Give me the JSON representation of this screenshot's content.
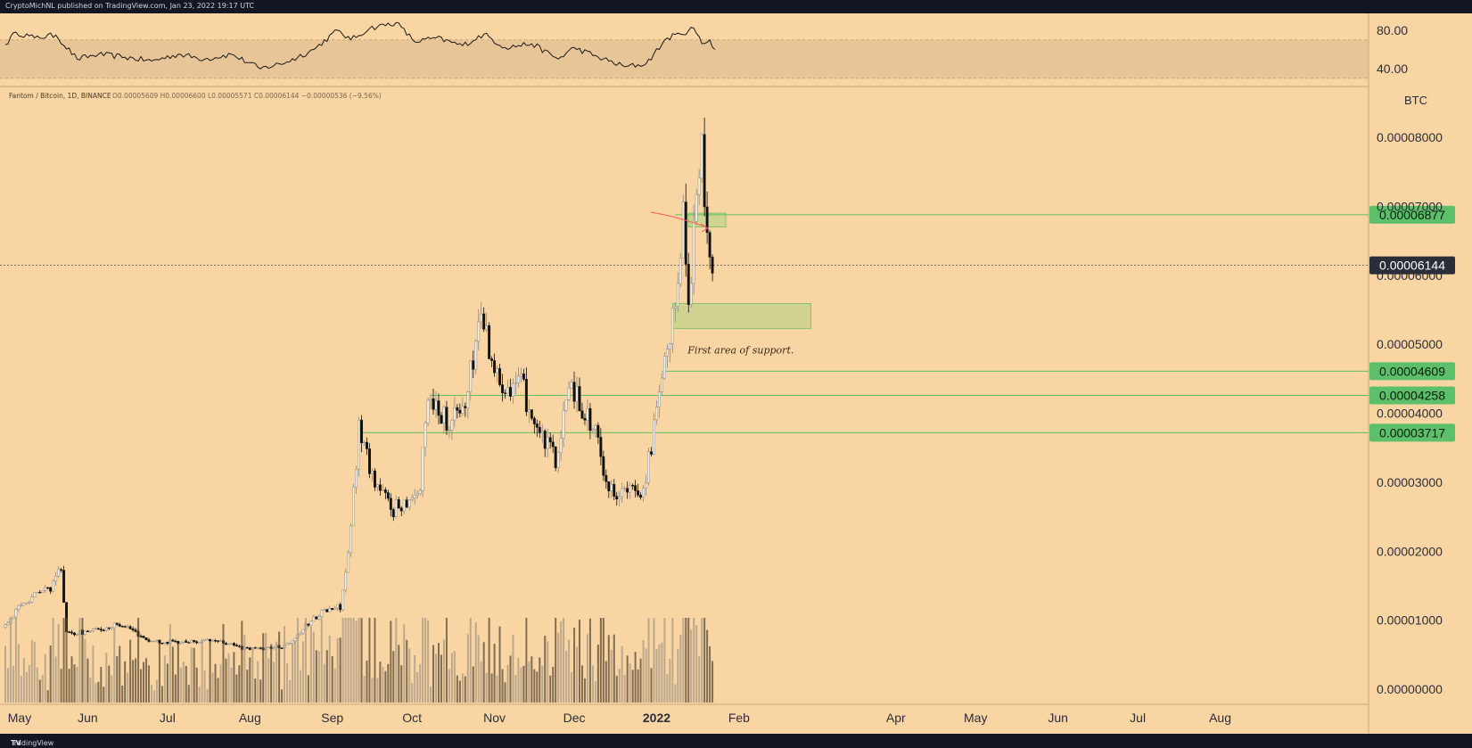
{
  "header": {
    "published_text": "CryptoMichNL published on TradingView.com, Jan 23, 2022 19:17 UTC"
  },
  "footer": {
    "brand": "TradingView",
    "logo_icon": "tradingview-logo-icon"
  },
  "colors": {
    "background": "#f8d5a3",
    "candle": "#111111",
    "level_line": "#5cc05c",
    "level_label_bg": "#5cbf6a",
    "current_label_bg": "#2a2e39",
    "rsi_band": "#e8c596",
    "annotation_arrow": "#ff5a5a"
  },
  "legend": {
    "symbol": "Fantom / Bitcoin, 1D, BINANCE",
    "ohlc": "O0.00005609 H0.00006600 L0.00005571 C0.00006144 −0.00000536 (−9.56%)"
  },
  "price_axis": {
    "unit": "BTC",
    "ticks": [
      "0.00000000",
      "0.00001000",
      "0.00002000",
      "0.00003000",
      "0.00004000",
      "0.00005000",
      "0.00006000",
      "0.00007000",
      "0.00008000"
    ]
  },
  "rsi_axis": {
    "ticks": [
      "80.00",
      "40.00"
    ]
  },
  "time_axis": {
    "labels": [
      {
        "label": "May"
      },
      {
        "label": "Jun"
      },
      {
        "label": "Jul"
      },
      {
        "label": "Aug"
      },
      {
        "label": "Sep"
      },
      {
        "label": "Oct"
      },
      {
        "label": "Nov"
      },
      {
        "label": "Dec"
      },
      {
        "label": "2022",
        "bold": true
      },
      {
        "label": "Feb"
      },
      {
        "label": "Apr"
      },
      {
        "label": "May"
      },
      {
        "label": "Jun"
      },
      {
        "label": "Jul"
      },
      {
        "label": "Aug"
      }
    ]
  },
  "chart_data": {
    "type": "candlestick",
    "title": "Fantom / Bitcoin, 1D, BINANCE",
    "ylabel": "BTC",
    "ylim": [
      0,
      8.5e-05
    ],
    "x_range": [
      "2021-05-01",
      "2022-08-31"
    ],
    "series": [
      {
        "date": "2021-05-01",
        "close": 9e-06
      },
      {
        "date": "2021-05-10",
        "close": 1.3e-05
      },
      {
        "date": "2021-05-20",
        "close": 1.5e-05
      },
      {
        "date": "2021-05-23",
        "close": 1.8e-05
      },
      {
        "date": "2021-05-25",
        "close": 8e-06
      },
      {
        "date": "2021-06-05",
        "close": 8.5e-06
      },
      {
        "date": "2021-06-15",
        "close": 9.5e-06
      },
      {
        "date": "2021-06-25",
        "close": 7e-06
      },
      {
        "date": "2021-07-05",
        "close": 6.8e-06
      },
      {
        "date": "2021-07-20",
        "close": 7e-06
      },
      {
        "date": "2021-08-01",
        "close": 5.8e-06
      },
      {
        "date": "2021-08-15",
        "close": 6.2e-06
      },
      {
        "date": "2021-08-28",
        "close": 1.1e-05
      },
      {
        "date": "2021-09-05",
        "close": 1.2e-05
      },
      {
        "date": "2021-09-08",
        "close": 1.9e-05
      },
      {
        "date": "2021-09-12",
        "close": 3.8e-05
      },
      {
        "date": "2021-09-18",
        "close": 3e-05
      },
      {
        "date": "2021-09-25",
        "close": 2.6e-05
      },
      {
        "date": "2021-10-05",
        "close": 2.9e-05
      },
      {
        "date": "2021-10-08",
        "close": 4.3e-05
      },
      {
        "date": "2021-10-15",
        "close": 3.9e-05
      },
      {
        "date": "2021-10-22",
        "close": 4.1e-05
      },
      {
        "date": "2021-10-28",
        "close": 5.5e-05
      },
      {
        "date": "2021-11-03",
        "close": 4.5e-05
      },
      {
        "date": "2021-11-12",
        "close": 4.4e-05
      },
      {
        "date": "2021-11-20",
        "close": 3.6e-05
      },
      {
        "date": "2021-11-26",
        "close": 3.3e-05
      },
      {
        "date": "2021-11-30",
        "close": 4.5e-05
      },
      {
        "date": "2021-12-10",
        "close": 3.7e-05
      },
      {
        "date": "2021-12-15",
        "close": 2.9e-05
      },
      {
        "date": "2021-12-22",
        "close": 2.85e-05
      },
      {
        "date": "2021-12-28",
        "close": 2.9e-05
      },
      {
        "date": "2022-01-03",
        "close": 4.2e-05
      },
      {
        "date": "2022-01-08",
        "close": 5.3e-05
      },
      {
        "date": "2022-01-12",
        "close": 6.9e-05
      },
      {
        "date": "2022-01-14",
        "close": 5.6e-05
      },
      {
        "date": "2022-01-17",
        "close": 7.2e-05
      },
      {
        "date": "2022-01-19",
        "close": 7.8e-05
      },
      {
        "date": "2022-01-21",
        "close": 6.5e-05
      },
      {
        "date": "2022-01-23",
        "close": 6.14e-05
      }
    ],
    "rsi": {
      "ylim": [
        28,
        92
      ],
      "levels": [
        30,
        70
      ],
      "points": [
        {
          "date": "2021-05-01",
          "value": 65
        },
        {
          "date": "2021-05-05",
          "value": 78
        },
        {
          "date": "2021-05-12",
          "value": 72
        },
        {
          "date": "2021-05-20",
          "value": 75
        },
        {
          "date": "2021-05-28",
          "value": 50
        },
        {
          "date": "2021-06-05",
          "value": 55
        },
        {
          "date": "2021-06-15",
          "value": 52
        },
        {
          "date": "2021-06-25",
          "value": 48
        },
        {
          "date": "2021-07-05",
          "value": 55
        },
        {
          "date": "2021-07-15",
          "value": 50
        },
        {
          "date": "2021-07-25",
          "value": 55
        },
        {
          "date": "2021-08-05",
          "value": 40
        },
        {
          "date": "2021-08-15",
          "value": 47
        },
        {
          "date": "2021-08-25",
          "value": 60
        },
        {
          "date": "2021-09-03",
          "value": 80
        },
        {
          "date": "2021-09-08",
          "value": 70
        },
        {
          "date": "2021-09-15",
          "value": 82
        },
        {
          "date": "2021-09-25",
          "value": 88
        },
        {
          "date": "2021-10-02",
          "value": 68
        },
        {
          "date": "2021-10-10",
          "value": 72
        },
        {
          "date": "2021-10-20",
          "value": 64
        },
        {
          "date": "2021-10-28",
          "value": 76
        },
        {
          "date": "2021-11-05",
          "value": 62
        },
        {
          "date": "2021-11-15",
          "value": 66
        },
        {
          "date": "2021-11-25",
          "value": 50
        },
        {
          "date": "2021-12-01",
          "value": 62
        },
        {
          "date": "2021-12-10",
          "value": 52
        },
        {
          "date": "2021-12-20",
          "value": 42
        },
        {
          "date": "2021-12-28",
          "value": 45
        },
        {
          "date": "2022-01-05",
          "value": 72
        },
        {
          "date": "2022-01-10",
          "value": 76
        },
        {
          "date": "2022-01-15",
          "value": 82
        },
        {
          "date": "2022-01-18",
          "value": 66
        },
        {
          "date": "2022-01-21",
          "value": 70
        },
        {
          "date": "2022-01-23",
          "value": 60
        }
      ]
    },
    "levels": [
      {
        "value": 6.877e-05,
        "label": "0.00006877"
      },
      {
        "value": 4.609e-05,
        "label": "0.00004609"
      },
      {
        "value": 4.258e-05,
        "label": "0.00004258"
      },
      {
        "value": 3.717e-05,
        "label": "0.00003717"
      }
    ],
    "current_price": {
      "value": 6.144e-05,
      "label": "0.00006144"
    },
    "zones": [
      {
        "from": "2022-01-13",
        "to": "2022-01-27",
        "low": 6.7e-05,
        "high": 6.9e-05
      },
      {
        "from": "2022-01-07",
        "to": "2022-02-28",
        "low": 5.23e-05,
        "high": 5.59e-05
      }
    ],
    "annotations": [
      {
        "text": "First area of support.",
        "date": "2022-01-15",
        "price": 4.92e-05
      }
    ]
  }
}
